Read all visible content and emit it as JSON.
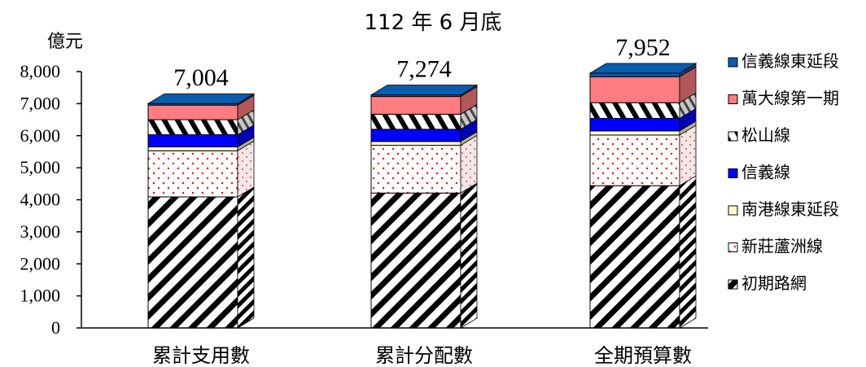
{
  "chart_data": {
    "type": "bar",
    "stacked": true,
    "three_d": true,
    "title": "112 年 6 月底",
    "ylabel": "億元",
    "xlabel": "",
    "ylim": [
      0,
      8000
    ],
    "yticks": [
      0,
      1000,
      2000,
      3000,
      4000,
      5000,
      6000,
      7000,
      8000
    ],
    "ytick_labels": [
      "0",
      "1,000",
      "2,000",
      "3,000",
      "4,000",
      "5,000",
      "6,000",
      "7,000",
      "8,000"
    ],
    "categories": [
      "累計支用數",
      "累計分配數",
      "全期預算數"
    ],
    "totals": [
      7004,
      7274,
      7952
    ],
    "total_labels": [
      "7,004",
      "7,274",
      "7,952"
    ],
    "grid": false,
    "legend_position": "right",
    "series": [
      {
        "name": "初期路網",
        "values": [
          4090,
          4210,
          4440
        ],
        "pattern": "diag-hatch",
        "color": "#000000"
      },
      {
        "name": "新莊蘆洲線",
        "values": [
          1440,
          1490,
          1580
        ],
        "pattern": "red-dots",
        "color": "#ff0000"
      },
      {
        "name": "南港線東延段",
        "values": [
          120,
          120,
          130
        ],
        "pattern": "solid",
        "color": "#ffffcc"
      },
      {
        "name": "信義線",
        "values": [
          380,
          380,
          390
        ],
        "pattern": "solid",
        "color": "#0000ff"
      },
      {
        "name": "松山線",
        "values": [
          470,
          470,
          490
        ],
        "pattern": "vert-hatch",
        "color": "#000000"
      },
      {
        "name": "萬大線第一期",
        "values": [
          454,
          554,
          812
        ],
        "pattern": "solid",
        "color": "#ff7c80"
      },
      {
        "name": "信義線東延段",
        "values": [
          50,
          50,
          110
        ],
        "pattern": "solid",
        "color": "#0b5cad"
      }
    ]
  }
}
